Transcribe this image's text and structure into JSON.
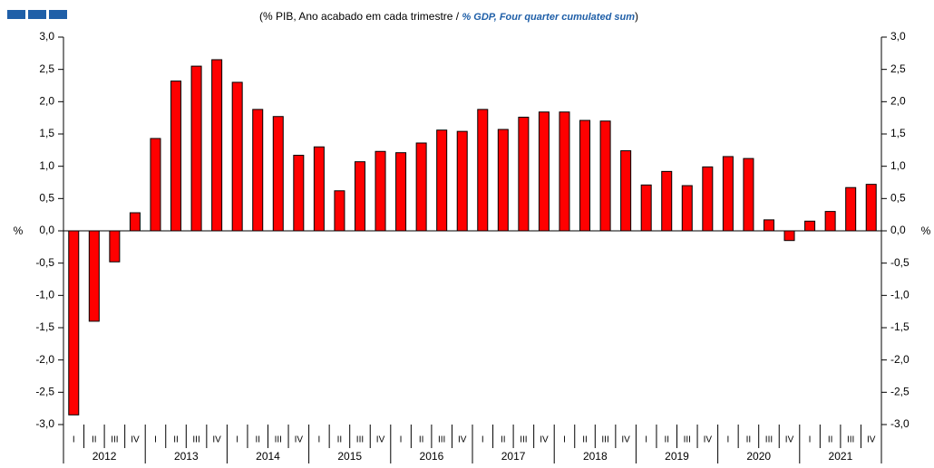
{
  "chart_data": {
    "type": "bar",
    "subtitle": [
      "(% PIB, Ano acabado em cada trimestre / ",
      "% GDP, Four quarter cumulated sum",
      ")"
    ],
    "y_label": "%",
    "categories": [
      "I",
      "II",
      "III",
      "IV",
      "I",
      "II",
      "III",
      "IV",
      "I",
      "II",
      "III",
      "IV",
      "I",
      "II",
      "III",
      "IV",
      "I",
      "II",
      "III",
      "IV",
      "I",
      "II",
      "III",
      "IV",
      "I",
      "II",
      "III",
      "IV",
      "I",
      "II",
      "III",
      "IV",
      "I",
      "II",
      "III",
      "IV",
      "I",
      "II",
      "III",
      "IV"
    ],
    "years": [
      "2012",
      "2013",
      "2014",
      "2015",
      "2016",
      "2017",
      "2018",
      "2019",
      "2020",
      "2021"
    ],
    "values": [
      -2.85,
      -1.4,
      -0.48,
      0.28,
      1.43,
      2.32,
      2.55,
      2.65,
      2.3,
      1.88,
      1.77,
      1.17,
      1.3,
      0.62,
      1.07,
      1.23,
      1.21,
      1.36,
      1.56,
      1.54,
      1.88,
      1.57,
      1.76,
      1.84,
      1.84,
      1.71,
      1.7,
      1.24,
      0.71,
      0.92,
      0.7,
      0.99,
      1.15,
      1.12,
      0.17,
      -0.15,
      0.15,
      0.3,
      0.67,
      0.72
    ],
    "color": "#ff0000",
    "ylim": [
      -3,
      3
    ],
    "yticks": [
      {
        "value": -3,
        "label": "-3,0"
      },
      {
        "value": -2.5,
        "label": "-2,5"
      },
      {
        "value": -2,
        "label": "-2,0"
      },
      {
        "value": -1.5,
        "label": "-1,5"
      },
      {
        "value": -1,
        "label": "-1,0"
      },
      {
        "value": -0.5,
        "label": "-0,5"
      },
      {
        "value": 0,
        "label": "0,0"
      },
      {
        "value": 0.5,
        "label": "0,5"
      },
      {
        "value": 1,
        "label": "1,0"
      },
      {
        "value": 1.5,
        "label": "1,5"
      },
      {
        "value": 2,
        "label": "2,0"
      },
      {
        "value": 2.5,
        "label": "2,5"
      },
      {
        "value": 3,
        "label": "3,0"
      }
    ]
  }
}
